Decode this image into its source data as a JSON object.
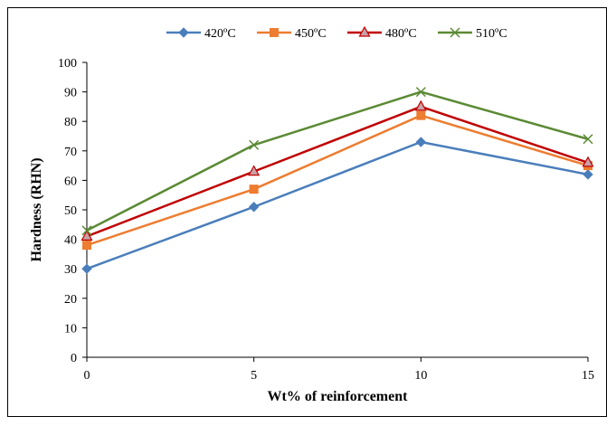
{
  "chart_data": {
    "type": "line",
    "title": "",
    "xlabel": "Wt% of reinforcement",
    "ylabel": "Hardness (RHN)",
    "x": [
      0,
      5,
      10,
      15
    ],
    "xlim": [
      0,
      15
    ],
    "ylim": [
      0,
      100
    ],
    "ytick_step": 10,
    "xticks": [
      "0",
      "5",
      "10",
      "15"
    ],
    "yticks": [
      "0",
      "10",
      "20",
      "30",
      "40",
      "50",
      "60",
      "70",
      "80",
      "90",
      "100"
    ],
    "grid": false,
    "legend_position": "top",
    "series": [
      {
        "name": "420ºC",
        "values": [
          30,
          51,
          73,
          62
        ],
        "color": "#4a7ebb",
        "marker": "diamond"
      },
      {
        "name": "450ºC",
        "values": [
          38,
          57,
          82,
          65
        ],
        "color": "#ed7d31",
        "marker": "square"
      },
      {
        "name": "480ºC",
        "values": [
          41,
          63,
          85,
          66
        ],
        "color": "#c00000",
        "marker": "triangle"
      },
      {
        "name": "510ºC",
        "values": [
          43,
          72,
          90,
          74
        ],
        "color": "#5b8a34",
        "marker": "x"
      }
    ]
  }
}
